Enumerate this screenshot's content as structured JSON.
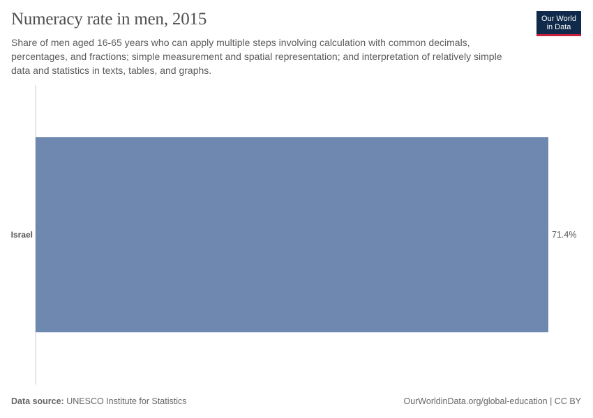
{
  "header": {
    "title": "Numeracy rate in men, 2015",
    "subtitle": "Share of men aged 16-65 years who can apply multiple steps involving calculation with common decimals, percentages, and fractions; simple measurement and spatial representation; and interpretation of relatively simple data and statistics in texts, tables, and graphs."
  },
  "logo": {
    "line1": "Our World",
    "line2": "in Data",
    "bg": "#0f2a4b",
    "accent": "#c81f3c"
  },
  "footer": {
    "source_label": "Data source:",
    "source_value": "UNESCO Institute for Statistics",
    "credit": "OurWorldinData.org/global-education | CC BY"
  },
  "chart_data": {
    "type": "bar",
    "orientation": "horizontal",
    "categories": [
      "Israel"
    ],
    "values": [
      71.4
    ],
    "value_labels": [
      "71.4%"
    ],
    "unit": "%",
    "bar_color": "#6f88b0",
    "xlim": [
      0,
      71.4
    ]
  }
}
